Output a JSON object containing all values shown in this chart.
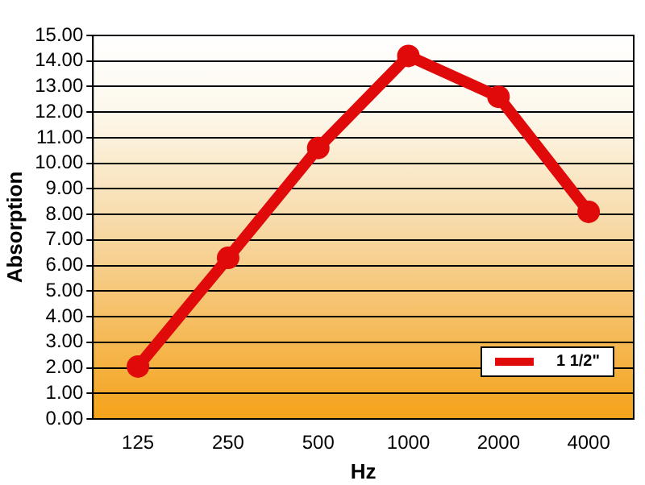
{
  "chart_data": {
    "type": "line",
    "xlabel": "Hz",
    "ylabel": "Absorption",
    "categories": [
      "125",
      "250",
      "500",
      "1000",
      "2000",
      "4000"
    ],
    "series": [
      {
        "name": "1 1/2\"",
        "color": "#e10a0a",
        "values": [
          2.05,
          6.3,
          10.6,
          14.2,
          12.6,
          8.1
        ]
      }
    ],
    "ylim": [
      0,
      15
    ],
    "yticks": [
      {
        "value": 0,
        "label": "0.00"
      },
      {
        "value": 1,
        "label": "1.00"
      },
      {
        "value": 2,
        "label": "2.00"
      },
      {
        "value": 3,
        "label": "3.00"
      },
      {
        "value": 4,
        "label": "4.00"
      },
      {
        "value": 5,
        "label": "5.00"
      },
      {
        "value": 6,
        "label": "6.00"
      },
      {
        "value": 7,
        "label": "7.00"
      },
      {
        "value": 8,
        "label": "8.00"
      },
      {
        "value": 9,
        "label": "9.00"
      },
      {
        "value": 10,
        "label": "10.00"
      },
      {
        "value": 11,
        "label": "11.00"
      },
      {
        "value": 12,
        "label": "12.00"
      },
      {
        "value": 13,
        "label": "13.00"
      },
      {
        "value": 14,
        "label": "14.00"
      },
      {
        "value": 15,
        "label": "15.00"
      }
    ],
    "grid": "y",
    "legend": "bottom right",
    "marker": "circle",
    "line_style": "solid"
  }
}
